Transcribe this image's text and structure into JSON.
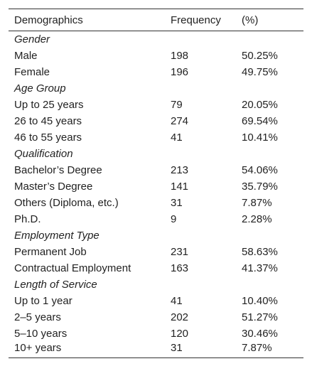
{
  "table": {
    "header": [
      "Demographics",
      "Frequency",
      "(%)"
    ],
    "groups": [
      {
        "title": "Gender",
        "rows": [
          [
            "Male",
            "198",
            "50.25%"
          ],
          [
            "Female",
            "196",
            "49.75%"
          ]
        ]
      },
      {
        "title": "Age Group",
        "rows": [
          [
            "Up to 25 years",
            "79",
            "20.05%"
          ],
          [
            "26 to 45 years",
            "274",
            "69.54%"
          ],
          [
            "46 to 55 years",
            "41",
            "10.41%"
          ]
        ]
      },
      {
        "title": "Qualification",
        "rows": [
          [
            "Bachelor’s Degree",
            "213",
            "54.06%"
          ],
          [
            "Master’s Degree",
            "141",
            "35.79%"
          ],
          [
            "Others (Diploma, etc.)",
            "31",
            "7.87%"
          ],
          [
            "Ph.D.",
            "9",
            "2.28%"
          ]
        ]
      },
      {
        "title": "Employment Type",
        "rows": [
          [
            "Permanent Job",
            "231",
            "58.63%"
          ],
          [
            "Contractual Employment",
            "163",
            "41.37%"
          ]
        ]
      },
      {
        "title": "Length of Service",
        "rows": [
          [
            "Up to 1 year",
            "41",
            "10.40%"
          ],
          [
            "2–5 years",
            "202",
            "51.27%"
          ],
          [
            "5–10 years",
            "120",
            "30.46%"
          ],
          [
            "10+ years",
            "31",
            "7.87%"
          ]
        ]
      }
    ]
  }
}
